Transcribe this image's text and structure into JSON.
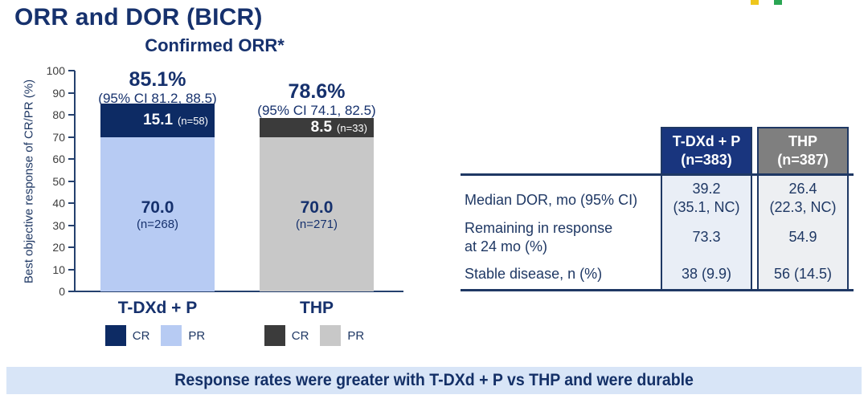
{
  "slide": {
    "title": "ORR and DOR (BICR)",
    "banner": "Response rates were greater with T-DXd + P vs THP and were durable"
  },
  "logo_marks": {
    "yellow": "#eec61c",
    "green": "#2aa553"
  },
  "chart_data": {
    "type": "bar",
    "stacked": true,
    "title": "Confirmed ORR*",
    "ylabel": "Best objective response of CR/PR (%)",
    "xlabel": "",
    "ylim": [
      0,
      100
    ],
    "yticks": [
      "0",
      "10",
      "20",
      "30",
      "40",
      "50",
      "60",
      "70",
      "80",
      "90",
      "100"
    ],
    "grid": false,
    "legend_position": "below-each-bar",
    "categories": [
      "T-DXd + P",
      "THP"
    ],
    "series": [
      {
        "name": "CR",
        "values": [
          15.1,
          8.5
        ]
      },
      {
        "name": "PR",
        "values": [
          70.0,
          70.0
        ]
      }
    ],
    "totals": [
      85.1,
      78.6
    ],
    "bars": [
      {
        "category": "T-DXd + P",
        "total_label": "85.1%",
        "ci_label": "(95% CI 81.2, 88.5)",
        "cr_value": "15.1",
        "cr_n": "(n=58)",
        "pr_value": "70.0",
        "pr_n": "(n=268)",
        "cr_color": "#0d2b64",
        "pr_color": "#b7cbf3",
        "legend_cr": "CR",
        "legend_pr": "PR"
      },
      {
        "category": "THP",
        "total_label": "78.6%",
        "ci_label": "(95% CI 74.1, 82.5)",
        "cr_value": "8.5",
        "cr_n": "(n=33)",
        "pr_value": "70.0",
        "pr_n": "(n=271)",
        "cr_color": "#3b3b3b",
        "pr_color": "#c8c8c8",
        "legend_cr": "CR",
        "legend_pr": "PR"
      }
    ]
  },
  "table": {
    "columns": [
      {
        "line1": "T-DXd + P",
        "line2": "(n=383)",
        "header_color": "#19357e",
        "body_color": "#e9eef6"
      },
      {
        "line1": "THP",
        "line2": "(n=387)",
        "header_color": "#7f7f7f",
        "body_color": "#edeff2"
      }
    ],
    "rows": [
      {
        "label": "Median DOR, mo (95% CI)",
        "label2": "",
        "v1": "39.2",
        "v1b": "(35.1, NC)",
        "v2": "26.4",
        "v2b": "(22.3, NC)"
      },
      {
        "label": "Remaining in response",
        "label2": "at 24 mo (%)",
        "v1": "73.3",
        "v1b": "",
        "v2": "54.9",
        "v2b": ""
      },
      {
        "label": "Stable disease, n (%)",
        "label2": "",
        "v1": "38 (9.9)",
        "v1b": "",
        "v2": "56 (14.5)",
        "v2b": ""
      }
    ]
  }
}
